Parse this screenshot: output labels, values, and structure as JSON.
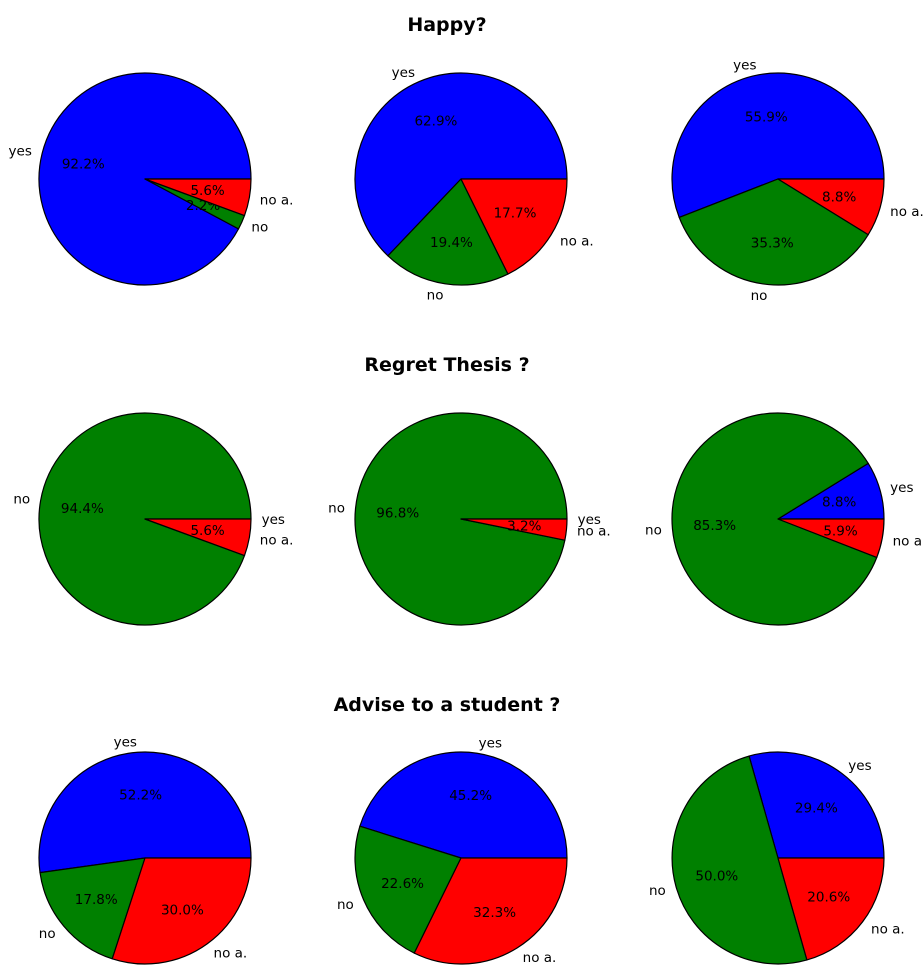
{
  "colors": {
    "yes": "#0000ff",
    "no": "#008000",
    "no a.": "#ff0000",
    "edge": "#000000"
  },
  "chart_data": [
    {
      "type": "pie",
      "title": "Happy?",
      "charts": [
        {
          "slices": [
            {
              "label": "yes",
              "value": 92.2,
              "pct": "92.2%"
            },
            {
              "label": "no",
              "value": 2.2,
              "pct": "2.2%"
            },
            {
              "label": "no a.",
              "value": 5.6,
              "pct": "5.6%"
            }
          ]
        },
        {
          "slices": [
            {
              "label": "yes",
              "value": 62.9,
              "pct": "62.9%"
            },
            {
              "label": "no",
              "value": 19.4,
              "pct": "19.4%"
            },
            {
              "label": "no a.",
              "value": 17.7,
              "pct": "17.7%"
            }
          ]
        },
        {
          "slices": [
            {
              "label": "yes",
              "value": 55.9,
              "pct": "55.9%"
            },
            {
              "label": "no",
              "value": 35.3,
              "pct": "35.3%"
            },
            {
              "label": "no a.",
              "value": 8.8,
              "pct": "8.8%"
            }
          ]
        }
      ]
    },
    {
      "type": "pie",
      "title": "Regret Thesis ?",
      "charts": [
        {
          "slices": [
            {
              "label": "yes",
              "value": 0.0,
              "pct": "0.0%"
            },
            {
              "label": "no",
              "value": 94.4,
              "pct": "94.4%"
            },
            {
              "label": "no a.",
              "value": 5.6,
              "pct": "5.6%"
            }
          ]
        },
        {
          "slices": [
            {
              "label": "yes",
              "value": 0.0,
              "pct": "0.0%"
            },
            {
              "label": "no",
              "value": 96.8,
              "pct": "96.8%"
            },
            {
              "label": "no a.",
              "value": 3.2,
              "pct": "3.2%"
            }
          ]
        },
        {
          "slices": [
            {
              "label": "yes",
              "value": 8.8,
              "pct": "8.8%"
            },
            {
              "label": "no",
              "value": 85.3,
              "pct": "85.3%"
            },
            {
              "label": "no a.",
              "value": 5.9,
              "pct": "5.9%"
            }
          ]
        }
      ]
    },
    {
      "type": "pie",
      "title": "Advise to a student ?",
      "charts": [
        {
          "slices": [
            {
              "label": "yes",
              "value": 52.2,
              "pct": "52.2%"
            },
            {
              "label": "no",
              "value": 17.8,
              "pct": "17.8%"
            },
            {
              "label": "no a.",
              "value": 30.0,
              "pct": "30.0%"
            }
          ]
        },
        {
          "slices": [
            {
              "label": "yes",
              "value": 45.2,
              "pct": "45.2%"
            },
            {
              "label": "no",
              "value": 22.6,
              "pct": "22.6%"
            },
            {
              "label": "no a.",
              "value": 32.3,
              "pct": "32.3%"
            }
          ]
        },
        {
          "slices": [
            {
              "label": "yes",
              "value": 29.4,
              "pct": "29.4%"
            },
            {
              "label": "no",
              "value": 50.0,
              "pct": "50.0%"
            },
            {
              "label": "no a.",
              "value": 20.6,
              "pct": "20.6%"
            }
          ]
        }
      ]
    }
  ]
}
